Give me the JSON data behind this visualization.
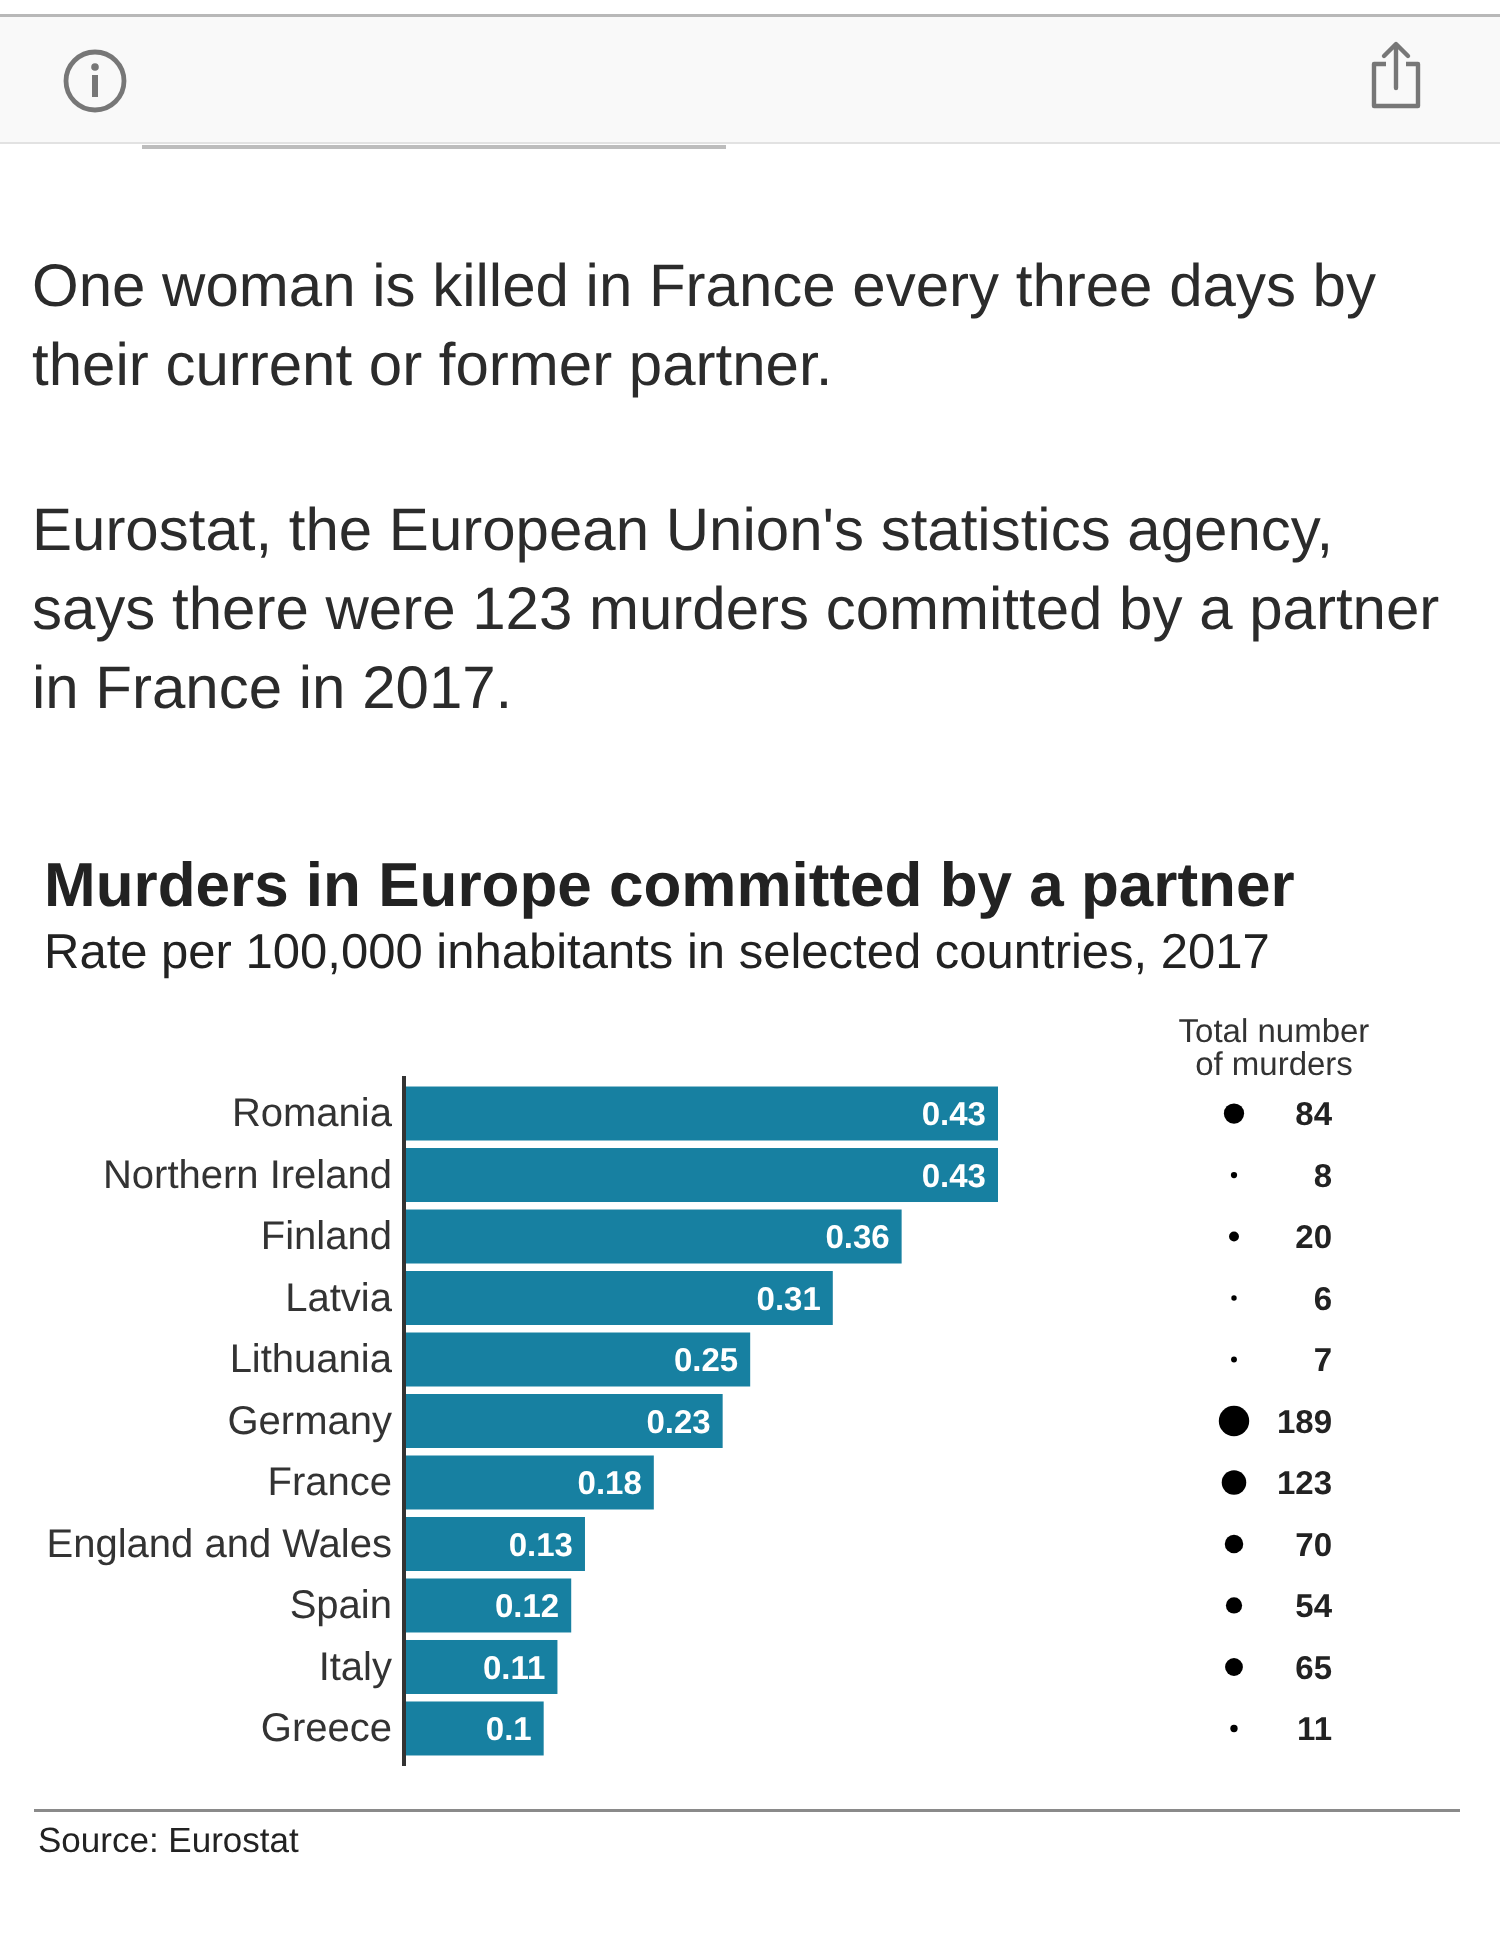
{
  "chart_data": [
    {
      "type": "bar",
      "orientation": "horizontal",
      "title": "Murders in Europe committed by a partner",
      "subtitle": "Rate per 100,000 inhabitants in selected countries, 2017",
      "categories": [
        "Romania",
        "Northern Ireland",
        "Finland",
        "Latvia",
        "Lithuania",
        "Germany",
        "France",
        "England and Wales",
        "Spain",
        "Italy",
        "Greece"
      ],
      "values": [
        0.43,
        0.43,
        0.36,
        0.31,
        0.25,
        0.23,
        0.18,
        0.13,
        0.12,
        0.11,
        0.1
      ],
      "color": "#1780a1",
      "data_labels": true,
      "annotations": [
        "One woman is killed in France every three days by their current or former partner.",
        "Eurostat, the European Union's statistics agency, says there were 123 murders committed by a partner in France in 2017.",
        "Source: Eurostat"
      ]
    },
    {
      "type": "other",
      "title": "Total number of murders",
      "values": [
        84,
        8,
        20,
        6,
        7,
        189,
        123,
        70,
        54,
        65,
        11
      ],
      "color": "#000000",
      "data_labels": true
    }
  ]
}
